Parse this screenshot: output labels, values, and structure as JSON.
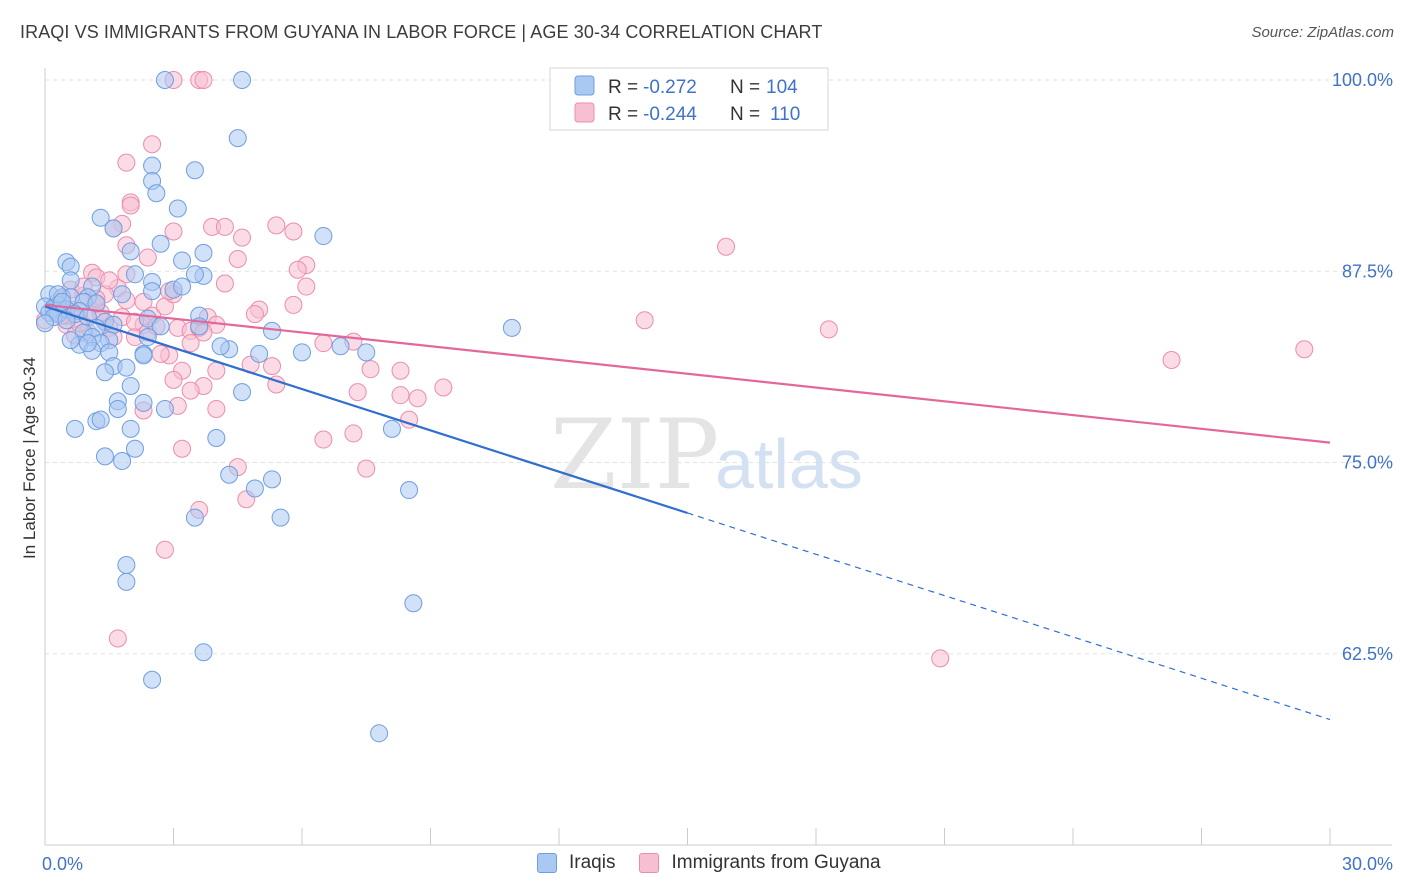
{
  "title": "IRAQI VS IMMIGRANTS FROM GUYANA IN LABOR FORCE | AGE 30-34 CORRELATION CHART",
  "source": "Source: ZipAtlas.com",
  "watermark": {
    "zip": "ZIP",
    "atlas": "atlas"
  },
  "colors": {
    "blue_fill": "#a9c8f2",
    "blue_stroke": "#6f9ee0",
    "blue_line": "#2f6fce",
    "pink_fill": "#f7c0d2",
    "pink_stroke": "#ec8cad",
    "pink_line": "#e2689a",
    "axis_text": "#3f73c7",
    "grid": "#e2e2e2"
  },
  "stats_legend": [
    {
      "r_label": "R =",
      "r_value": "-0.272",
      "n_label": "N =",
      "n_value": "104"
    },
    {
      "r_label": "R =",
      "r_value": "-0.244",
      "n_label": "N =",
      "n_value": "110"
    }
  ],
  "chart_data": {
    "type": "scatter",
    "xlabel": "",
    "ylabel": "In Labor Force | Age 30-34",
    "xlim": [
      0,
      30
    ],
    "ylim": [
      50,
      101
    ],
    "x_tick_labels": [
      "0.0%",
      "30.0%"
    ],
    "y_ticks": [
      62.5,
      75.0,
      87.5,
      100.0
    ],
    "y_tick_labels": [
      "62.5%",
      "75.0%",
      "87.5%",
      "100.0%"
    ],
    "grid": true,
    "legend": [
      "Iraqis",
      "Immigrants from Guyana"
    ],
    "series": [
      {
        "name": "Iraqis",
        "r": -0.272,
        "n": 104,
        "trend": {
          "x0": 0,
          "y0": 85.2,
          "x1": 15,
          "y1": 71.7,
          "dashed_to_x": 30,
          "dashed_to_y": 58.2
        },
        "points": [
          [
            2.8,
            100
          ],
          [
            4.6,
            100
          ],
          [
            4.5,
            96.2
          ],
          [
            2.5,
            94.4
          ],
          [
            3.5,
            94.1
          ],
          [
            2.5,
            93.4
          ],
          [
            2.6,
            92.6
          ],
          [
            3.1,
            91.6
          ],
          [
            1.3,
            91.0
          ],
          [
            1.6,
            90.3
          ],
          [
            6.5,
            89.8
          ],
          [
            2.7,
            89.3
          ],
          [
            3.7,
            88.7
          ],
          [
            2.0,
            88.8
          ],
          [
            0.5,
            88.1
          ],
          [
            3.2,
            88.2
          ],
          [
            0.6,
            87.8
          ],
          [
            2.1,
            87.3
          ],
          [
            3.7,
            87.2
          ],
          [
            3.5,
            87.3
          ],
          [
            0.6,
            86.9
          ],
          [
            2.5,
            86.8
          ],
          [
            1.1,
            86.5
          ],
          [
            3.0,
            86.3
          ],
          [
            2.5,
            86.2
          ],
          [
            0.1,
            86.0
          ],
          [
            0.4,
            85.8
          ],
          [
            0.6,
            85.8
          ],
          [
            1.0,
            85.8
          ],
          [
            0.9,
            85.5
          ],
          [
            1.2,
            85.4
          ],
          [
            0.3,
            85.3
          ],
          [
            0.0,
            85.2
          ],
          [
            0.2,
            85.1
          ],
          [
            0.5,
            85.0
          ],
          [
            0.8,
            84.9
          ],
          [
            0.1,
            84.8
          ],
          [
            0.3,
            84.7
          ],
          [
            0.7,
            84.7
          ],
          [
            0.2,
            84.5
          ],
          [
            1.0,
            84.5
          ],
          [
            0.5,
            84.3
          ],
          [
            1.4,
            84.2
          ],
          [
            0.0,
            84.1
          ],
          [
            3.6,
            84.6
          ],
          [
            2.4,
            84.4
          ],
          [
            1.6,
            84.0
          ],
          [
            1.2,
            83.8
          ],
          [
            2.7,
            83.9
          ],
          [
            3.6,
            83.9
          ],
          [
            5.3,
            83.6
          ],
          [
            0.9,
            83.5
          ],
          [
            1.1,
            83.2
          ],
          [
            1.5,
            83.0
          ],
          [
            2.4,
            83.2
          ],
          [
            1.3,
            82.8
          ],
          [
            0.8,
            82.7
          ],
          [
            6.9,
            82.6
          ],
          [
            7.5,
            82.2
          ],
          [
            4.3,
            82.4
          ],
          [
            1.1,
            82.3
          ],
          [
            1.5,
            82.2
          ],
          [
            2.3,
            82.1
          ],
          [
            2.3,
            82.0
          ],
          [
            5.0,
            82.1
          ],
          [
            6.0,
            82.2
          ],
          [
            1.6,
            81.3
          ],
          [
            1.4,
            80.9
          ],
          [
            2.0,
            80.0
          ],
          [
            4.6,
            79.6
          ],
          [
            1.7,
            79.0
          ],
          [
            2.3,
            78.9
          ],
          [
            1.7,
            78.5
          ],
          [
            2.8,
            78.5
          ],
          [
            1.2,
            77.7
          ],
          [
            1.3,
            77.8
          ],
          [
            2.0,
            77.2
          ],
          [
            0.7,
            77.2
          ],
          [
            8.1,
            77.2
          ],
          [
            4.0,
            76.6
          ],
          [
            2.1,
            75.9
          ],
          [
            1.4,
            75.4
          ],
          [
            1.8,
            75.1
          ],
          [
            4.3,
            74.2
          ],
          [
            5.3,
            73.9
          ],
          [
            4.9,
            73.3
          ],
          [
            8.5,
            73.2
          ],
          [
            3.5,
            71.4
          ],
          [
            5.5,
            71.4
          ],
          [
            1.9,
            68.3
          ],
          [
            1.9,
            67.2
          ],
          [
            8.6,
            65.8
          ],
          [
            3.7,
            62.6
          ],
          [
            2.5,
            60.8
          ],
          [
            7.8,
            57.3
          ],
          [
            10.9,
            83.8
          ],
          [
            0.3,
            86.0
          ],
          [
            0.4,
            85.5
          ],
          [
            1.8,
            86.0
          ],
          [
            3.2,
            86.5
          ],
          [
            0.6,
            83.0
          ],
          [
            1.9,
            81.2
          ],
          [
            4.1,
            82.6
          ],
          [
            1.0,
            82.8
          ]
        ]
      },
      {
        "name": "Immigrants from Guyana",
        "r": -0.244,
        "n": 110,
        "trend": {
          "x0": 0,
          "y0": 85.3,
          "x1": 30,
          "y1": 76.3
        },
        "points": [
          [
            3.0,
            100
          ],
          [
            3.6,
            100
          ],
          [
            3.7,
            100
          ],
          [
            2.5,
            95.8
          ],
          [
            1.9,
            94.6
          ],
          [
            2.0,
            92.0
          ],
          [
            2.0,
            91.8
          ],
          [
            1.8,
            90.6
          ],
          [
            3.9,
            90.4
          ],
          [
            4.2,
            90.4
          ],
          [
            5.4,
            90.5
          ],
          [
            5.8,
            90.1
          ],
          [
            3.0,
            90.1
          ],
          [
            4.6,
            89.7
          ],
          [
            1.6,
            90.3
          ],
          [
            1.9,
            89.2
          ],
          [
            15.9,
            89.1
          ],
          [
            2.4,
            88.4
          ],
          [
            4.5,
            88.3
          ],
          [
            6.1,
            87.9
          ],
          [
            5.9,
            87.6
          ],
          [
            1.1,
            87.4
          ],
          [
            1.9,
            87.3
          ],
          [
            1.2,
            87.1
          ],
          [
            4.2,
            86.7
          ],
          [
            6.1,
            86.5
          ],
          [
            1.7,
            86.4
          ],
          [
            0.6,
            86.3
          ],
          [
            1.4,
            86.0
          ],
          [
            0.9,
            85.9
          ],
          [
            0.4,
            85.7
          ],
          [
            1.9,
            85.6
          ],
          [
            2.3,
            85.5
          ],
          [
            1.2,
            85.3
          ],
          [
            0.2,
            85.1
          ],
          [
            0.6,
            85.0
          ],
          [
            1.1,
            84.9
          ],
          [
            0.3,
            84.8
          ],
          [
            5.0,
            85.0
          ],
          [
            4.9,
            84.7
          ],
          [
            2.5,
            84.6
          ],
          [
            1.8,
            84.5
          ],
          [
            0.8,
            84.4
          ],
          [
            0.0,
            84.3
          ],
          [
            1.4,
            84.2
          ],
          [
            3.8,
            84.5
          ],
          [
            0.5,
            84.0
          ],
          [
            2.3,
            84.0
          ],
          [
            1.5,
            83.8
          ],
          [
            3.1,
            83.8
          ],
          [
            3.4,
            83.6
          ],
          [
            3.6,
            83.8
          ],
          [
            1.0,
            83.5
          ],
          [
            14.0,
            84.3
          ],
          [
            18.3,
            83.7
          ],
          [
            0.7,
            83.3
          ],
          [
            2.1,
            83.2
          ],
          [
            2.4,
            83.5
          ],
          [
            3.4,
            82.8
          ],
          [
            6.5,
            82.8
          ],
          [
            7.2,
            82.9
          ],
          [
            29.4,
            82.4
          ],
          [
            2.9,
            82.0
          ],
          [
            2.7,
            82.1
          ],
          [
            26.3,
            81.7
          ],
          [
            4.8,
            81.4
          ],
          [
            5.3,
            81.3
          ],
          [
            3.2,
            81.0
          ],
          [
            4.0,
            81.0
          ],
          [
            7.6,
            81.1
          ],
          [
            8.3,
            81.0
          ],
          [
            3.0,
            80.4
          ],
          [
            3.7,
            80.0
          ],
          [
            5.4,
            80.1
          ],
          [
            3.4,
            79.7
          ],
          [
            7.3,
            79.6
          ],
          [
            9.3,
            79.9
          ],
          [
            8.3,
            79.4
          ],
          [
            8.7,
            79.2
          ],
          [
            4.0,
            78.5
          ],
          [
            2.3,
            78.4
          ],
          [
            8.5,
            77.8
          ],
          [
            3.1,
            78.7
          ],
          [
            7.2,
            76.9
          ],
          [
            6.5,
            76.5
          ],
          [
            3.2,
            75.9
          ],
          [
            4.5,
            74.7
          ],
          [
            7.5,
            74.6
          ],
          [
            4.7,
            72.6
          ],
          [
            3.6,
            71.9
          ],
          [
            2.8,
            69.3
          ],
          [
            1.7,
            63.5
          ],
          [
            20.9,
            62.2
          ],
          [
            0.5,
            84.6
          ],
          [
            1.3,
            84.8
          ],
          [
            0.9,
            86.5
          ],
          [
            2.8,
            85.2
          ],
          [
            3.0,
            86.0
          ],
          [
            4.0,
            84.0
          ],
          [
            2.1,
            84.2
          ],
          [
            1.6,
            83.2
          ],
          [
            5.8,
            85.3
          ],
          [
            0.3,
            85.5
          ],
          [
            1.5,
            86.9
          ],
          [
            2.9,
            86.2
          ],
          [
            0.8,
            84.1
          ],
          [
            1.2,
            85.7
          ],
          [
            3.7,
            83.5
          ],
          [
            2.6,
            83.9
          ],
          [
            0.4,
            84.6
          ]
        ]
      }
    ]
  }
}
